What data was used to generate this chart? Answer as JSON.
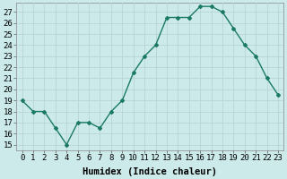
{
  "x": [
    0,
    1,
    2,
    3,
    4,
    5,
    6,
    7,
    8,
    9,
    10,
    11,
    12,
    13,
    14,
    15,
    16,
    17,
    18,
    19,
    20,
    21,
    22,
    23
  ],
  "y": [
    19,
    18,
    18,
    16.5,
    15,
    17,
    17,
    16.5,
    18,
    19,
    21.5,
    23,
    24,
    26.5,
    26.5,
    26.5,
    27.5,
    27.5,
    27,
    25.5,
    24,
    23,
    21,
    19.5
  ],
  "line_color": "#1a7a63",
  "marker": "D",
  "marker_size": 2.0,
  "bg_color": "#cceaea",
  "grid_color": "#b8d4d4",
  "xlabel": "Humidex (Indice chaleur)",
  "ylabel_ticks": [
    15,
    16,
    17,
    18,
    19,
    20,
    21,
    22,
    23,
    24,
    25,
    26,
    27
  ],
  "xlim": [
    -0.5,
    23.5
  ],
  "ylim": [
    14.5,
    27.8
  ],
  "xtick_labels": [
    "0",
    "1",
    "2",
    "3",
    "4",
    "5",
    "6",
    "7",
    "8",
    "9",
    "10",
    "11",
    "12",
    "13",
    "14",
    "15",
    "16",
    "17",
    "18",
    "19",
    "20",
    "21",
    "22",
    "23"
  ],
  "line_width": 1.0,
  "xlabel_fontsize": 7.5,
  "tick_fontsize": 6.5
}
